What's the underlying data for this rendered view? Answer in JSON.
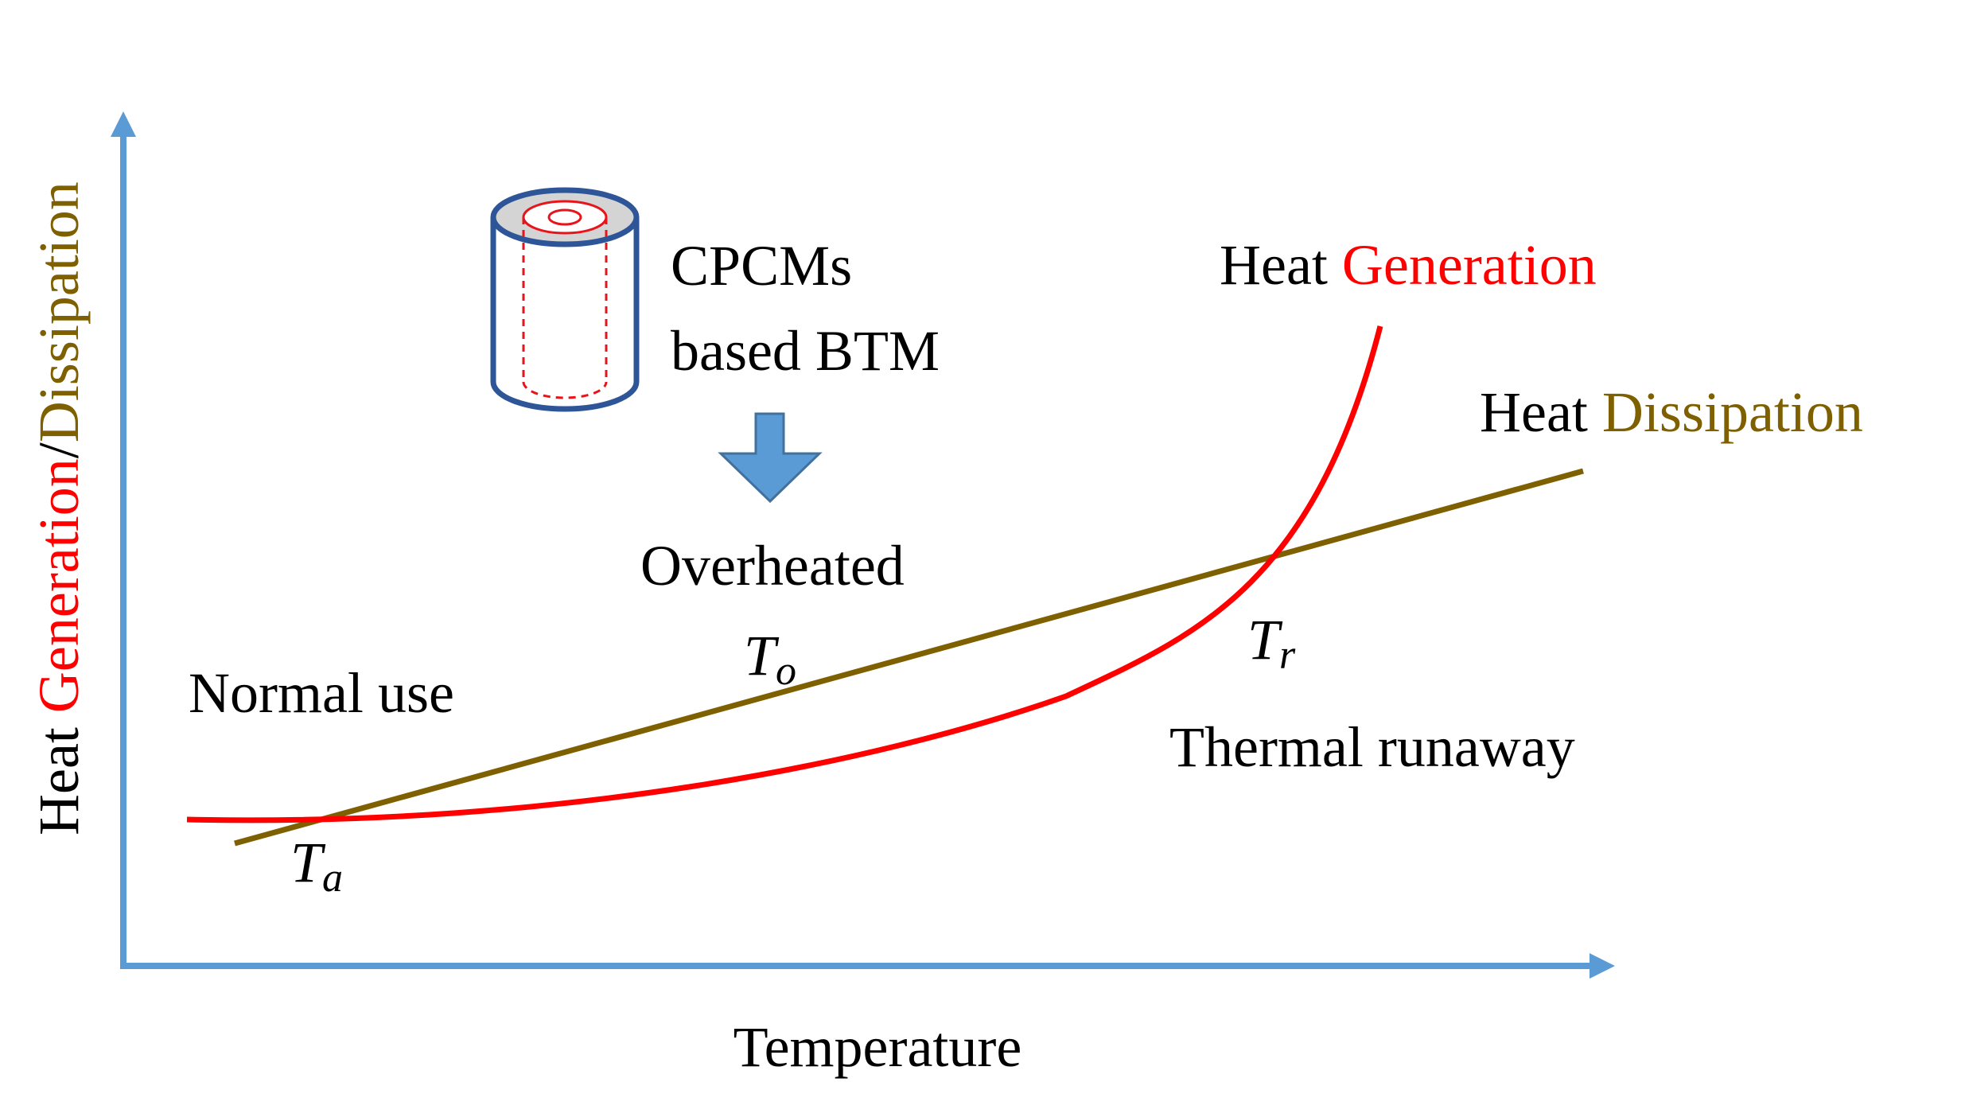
{
  "colors": {
    "axis": "#5b9bd5",
    "generation": "#ff0000",
    "dissipation": "#7f6000",
    "text": "#000000",
    "cell_wall": "#2e5597",
    "cell_top": "#d4d4d4",
    "cell_core": "#e8141b",
    "arrow_fill": "#5b9bd5",
    "arrow_stroke": "#41719c"
  },
  "axes": {
    "x_label": "Temperature",
    "y_label_prefix": "Heat ",
    "y_label_generation": "Generation",
    "y_label_separator": "/",
    "y_label_dissipation": "Dissipation"
  },
  "legend": {
    "generation": {
      "prefix": "Heat ",
      "word": "Generation"
    },
    "dissipation": {
      "prefix": "Heat ",
      "word": "Dissipation"
    }
  },
  "regions": {
    "normal": "Normal use",
    "overheated": "Overheated",
    "runaway": "Thermal runaway"
  },
  "cell": {
    "label_line1": "CPCMs",
    "label_line2": "based BTM",
    "icon": "battery-cell-icon",
    "arrow_icon": "down-arrow-icon"
  },
  "temperatures": {
    "ta": {
      "main": "T",
      "sub": "a"
    },
    "to": {
      "main": "T",
      "sub": "o"
    },
    "tr": {
      "main": "T",
      "sub": "r"
    }
  }
}
